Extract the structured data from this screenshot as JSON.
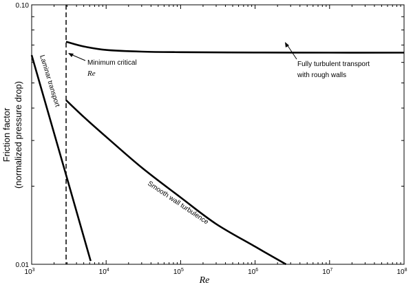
{
  "chart_data": {
    "type": "line",
    "title": "",
    "xlabel": "Re",
    "ylabel_lines": [
      "Friction factor",
      "(normalized pressure drop)"
    ],
    "xscale": "log",
    "yscale": "log",
    "xlim": [
      1000,
      100000000
    ],
    "ylim": [
      0.01,
      0.1
    ],
    "grid": false,
    "x_ticks": [
      {
        "base": "10",
        "exp": "3",
        "value": 1000
      },
      {
        "base": "10",
        "exp": "4",
        "value": 10000
      },
      {
        "base": "10",
        "exp": "5",
        "value": 100000
      },
      {
        "base": "10",
        "exp": "6",
        "value": 1000000
      },
      {
        "base": "10",
        "exp": "7",
        "value": 10000000
      },
      {
        "base": "10",
        "exp": "8",
        "value": 100000000
      }
    ],
    "y_ticks": [
      {
        "label": "0.01",
        "value": 0.01
      },
      {
        "label": "0.10",
        "value": 0.1
      }
    ],
    "y_minor_ticks": [
      0.02,
      0.03,
      0.04,
      0.05,
      0.06,
      0.07,
      0.08,
      0.09
    ],
    "critical_re": 2900,
    "series": [
      {
        "label": "Laminar transport",
        "x": [
          1000,
          2900,
          6200
        ],
        "y": [
          0.064,
          0.0221,
          0.0103
        ]
      },
      {
        "label": "Smooth wall turbulence",
        "x": [
          2900,
          5000,
          10000,
          30000,
          100000,
          300000,
          1000000,
          2600000
        ],
        "y": [
          0.0429,
          0.037,
          0.031,
          0.0236,
          0.0181,
          0.0143,
          0.0117,
          0.01
        ]
      },
      {
        "label": "Fully turbulent transport with rough walls",
        "x": [
          2900,
          5000,
          10000,
          30000,
          100000,
          1000000,
          10000000,
          100000000
        ],
        "y": [
          0.0721,
          0.0691,
          0.067,
          0.066,
          0.0657,
          0.0655,
          0.0654,
          0.0654
        ]
      }
    ],
    "annotations": {
      "min_critical": {
        "line1": "Minimum critical",
        "line2": "Re"
      },
      "rough_walls": {
        "line1": "Fully turbulent transport",
        "line2": "with rough walls"
      },
      "smooth": "Smooth wall turbulence",
      "laminar": "Laminar transport"
    }
  }
}
